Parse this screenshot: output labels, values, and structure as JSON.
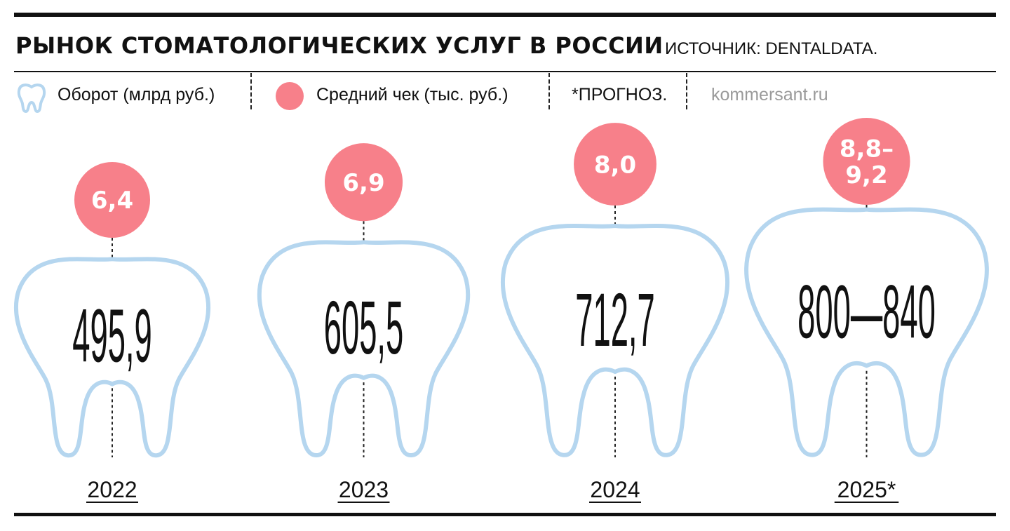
{
  "header": {
    "title": "РЫНОК СТОМАТОЛОГИЧЕСКИХ УСЛУГ В РОССИИ",
    "source": "ИСТОЧНИК: DENTALDATA."
  },
  "legend": {
    "turnover_label": "Оборот (млрд руб.)",
    "turnover_icon": "tooth-icon",
    "avg_check_label": "Средний чек (тыс. руб.)",
    "avg_check_icon": "circle-icon",
    "forecast_note": "*ПРОГНОЗ.",
    "site": "kommersant.ru"
  },
  "colors": {
    "tooth_outline": "#b5d6ef",
    "circle_fill": "#f7808a",
    "circle_text": "#ffffff",
    "text": "#111111"
  },
  "chart_data": {
    "type": "pictogram",
    "categories": [
      "2022",
      "2023",
      "2024",
      "2025*"
    ],
    "series": [
      {
        "name": "Оборот (млрд руб.)",
        "values": [
          495.9,
          605.5,
          712.7,
          [
            800,
            840
          ]
        ],
        "labels": [
          "495,9",
          "605,5",
          "712,7",
          "800—840"
        ]
      },
      {
        "name": "Средний чек (тыс. руб.)",
        "values": [
          6.4,
          6.9,
          8.0,
          [
            8.8,
            9.2
          ]
        ],
        "labels": [
          [
            "6,4"
          ],
          [
            "6,9"
          ],
          [
            "8,0"
          ],
          [
            "8,8–",
            "9,2"
          ]
        ]
      }
    ]
  }
}
